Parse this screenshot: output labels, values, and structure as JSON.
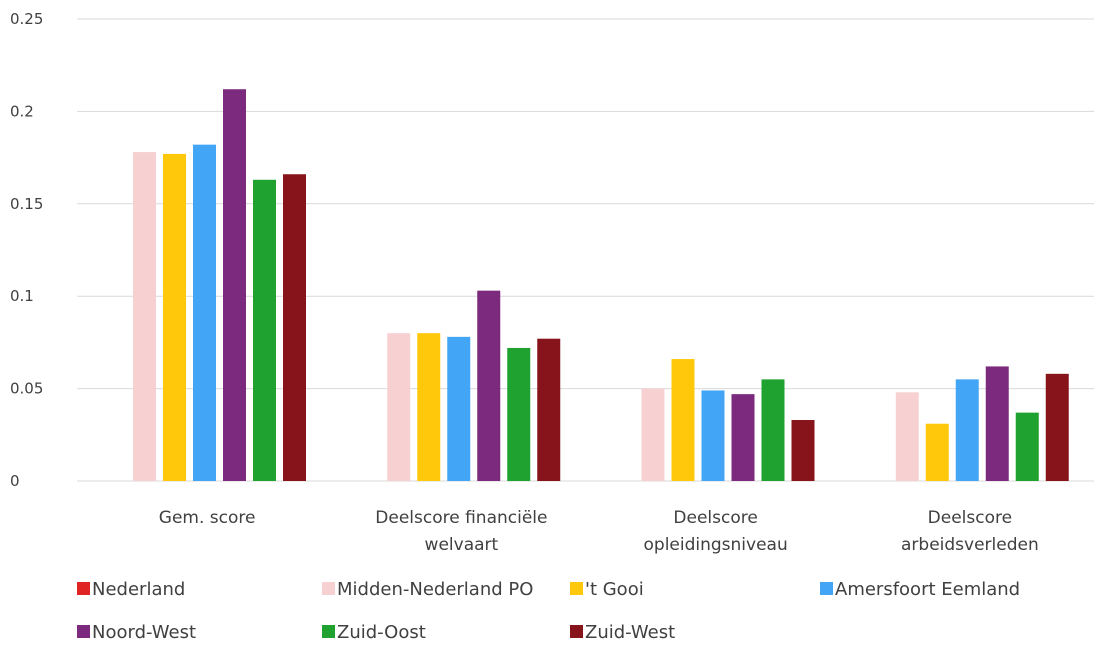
{
  "chart_data": {
    "type": "bar",
    "title": "",
    "xlabel": "",
    "ylabel": "",
    "ylim": [
      0,
      0.25
    ],
    "yticks": [
      "0",
      "0.05",
      "0.1",
      "0.15",
      "0.2",
      "0.25"
    ],
    "grid": true,
    "legend_position": "bottom",
    "categories": [
      [
        "Gem. score"
      ],
      [
        "Deelscore financiële",
        "welvaart"
      ],
      [
        "Deelscore",
        "opleidingsniveau"
      ],
      [
        "Deelscore",
        "arbeidsverleden"
      ]
    ],
    "series": [
      {
        "name": "Nederland",
        "color": "#e02424",
        "values": [
          null,
          null,
          null,
          null
        ]
      },
      {
        "name": "Midden-Nederland PO",
        "color": "#f7d1d1",
        "values": [
          0.178,
          0.08,
          0.05,
          0.048
        ]
      },
      {
        "name": "'t Gooi",
        "color": "#ffc80a",
        "values": [
          0.177,
          0.08,
          0.066,
          0.031
        ]
      },
      {
        "name": "Amersfoort Eemland",
        "color": "#42a5f5",
        "values": [
          0.182,
          0.078,
          0.049,
          0.055
        ]
      },
      {
        "name": "Noord-West",
        "color": "#7b2a7e",
        "values": [
          0.212,
          0.103,
          0.047,
          0.062
        ]
      },
      {
        "name": "Zuid-Oost",
        "color": "#1fa22f",
        "values": [
          0.163,
          0.072,
          0.055,
          0.037
        ]
      },
      {
        "name": "Zuid-West",
        "color": "#87141a",
        "values": [
          0.166,
          0.077,
          0.033,
          0.058
        ]
      }
    ]
  }
}
